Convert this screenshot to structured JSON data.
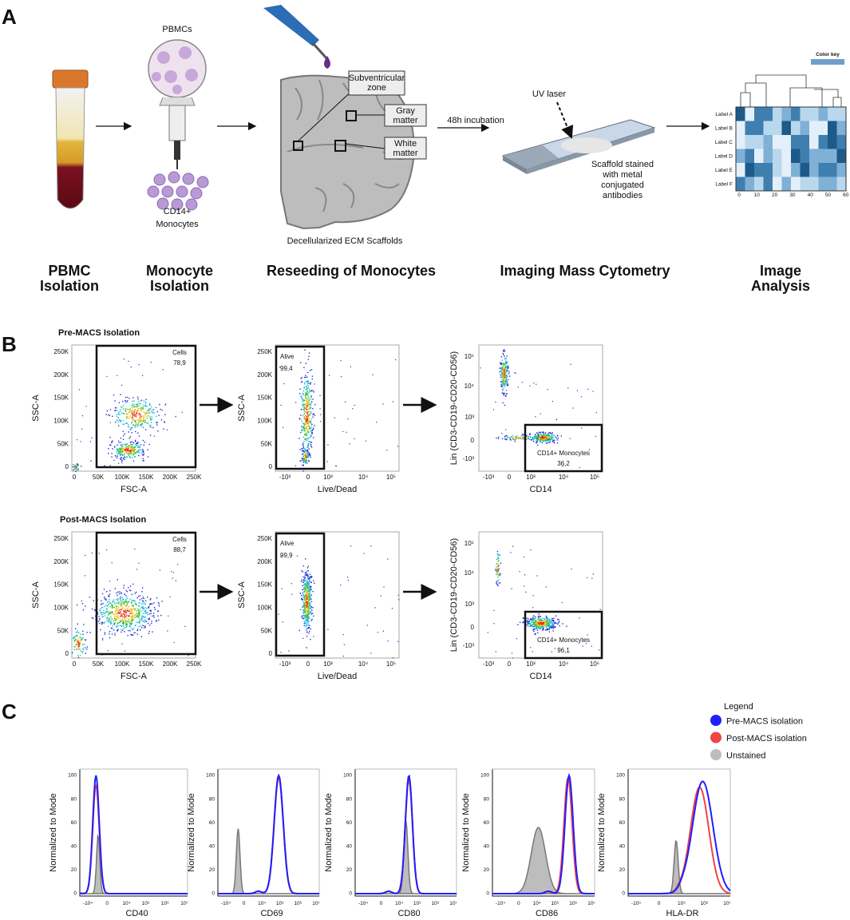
{
  "panel_a": {
    "letter": "A",
    "labels": {
      "pbmcs": "PBMCs",
      "cd14": [
        "CD14+",
        "Monocytes"
      ],
      "svz": [
        "Subventricular",
        "zone"
      ],
      "gray": [
        "Gray",
        "matter"
      ],
      "white": [
        "White",
        "matter"
      ],
      "scaffolds": "Decellularized ECM Scaffolds",
      "incubation": "48h incubation",
      "uv": "UV laser",
      "stained": [
        "Scaffold stained",
        "with metal",
        "conjugated",
        "antibodies"
      ],
      "color_key": "Color key"
    },
    "heatmap": {
      "rows": [
        "Label A",
        "Label B",
        "Label C",
        "Label D",
        "Label E",
        "Label F"
      ],
      "xticks": [
        "0",
        "10",
        "20",
        "30",
        "40",
        "50",
        "60"
      ]
    },
    "steps": [
      [
        "PBMC",
        "Isolation"
      ],
      [
        "Monocyte",
        "Isolation"
      ],
      [
        "Reseeding of Monocytes"
      ],
      [
        "Imaging Mass Cytometry"
      ],
      [
        "Image",
        "Analysis"
      ]
    ]
  },
  "panel_b": {
    "letter": "B",
    "rows": [
      {
        "title": "Pre-MACS Isolation",
        "gates": [
          {
            "name": "Cells",
            "value": "78,9"
          },
          {
            "name": "Alive",
            "value": "99,4"
          },
          {
            "name": "CD14+ Monocytes",
            "value": "36,2"
          }
        ]
      },
      {
        "title": "Post-MACS Isolation",
        "gates": [
          {
            "name": "Cells",
            "value": "88,7"
          },
          {
            "name": "Alive",
            "value": "99,9"
          },
          {
            "name": "CD14+ Monocytes",
            "value": "96,1"
          }
        ]
      }
    ],
    "linear_ticks": [
      "0",
      "50K",
      "100K",
      "150K",
      "200K",
      "250K"
    ],
    "log_ticks": [
      "-10³",
      "0",
      "10³",
      "10⁴",
      "10⁵"
    ],
    "axis_labels": {
      "fsc": "FSC-A",
      "ssc": "SSC-A",
      "live": "Live/Dead",
      "lin": "Lin (CD3-CD19-CD20-CD56)",
      "cd14": "CD14"
    }
  },
  "panel_c": {
    "letter": "C",
    "legend": {
      "title": "Legend",
      "items": [
        {
          "name": "Pre-MACS isolation",
          "color": "#1f1fff"
        },
        {
          "name": "Post-MACS isolation",
          "color": "#f04545"
        },
        {
          "name": "Unstained",
          "color": "#bdbdbd"
        }
      ]
    },
    "ylabel": "Normalized to Mode",
    "yticks": [
      "0",
      "20",
      "40",
      "60",
      "80",
      "100"
    ],
    "plots": [
      {
        "marker": "CD40",
        "xticks": [
          "-10⁴",
          "0",
          "10⁴",
          "10⁵",
          "10⁶",
          "10⁷"
        ]
      },
      {
        "marker": "CD69",
        "xticks": [
          "-10⁴",
          "0",
          "10⁴",
          "10⁵",
          "10⁶",
          "10⁷"
        ]
      },
      {
        "marker": "CD80",
        "xticks": [
          "-10⁴",
          "0",
          "10⁴",
          "10⁵",
          "10⁶",
          "10⁷"
        ]
      },
      {
        "marker": "CD86",
        "xticks": [
          "-10⁴",
          "0",
          "10⁴",
          "10⁵",
          "10⁶",
          "10⁷"
        ]
      },
      {
        "marker": "HLA-DR",
        "xticks": [
          "-10⁵",
          "0",
          "10⁵",
          "10⁶",
          "10⁷"
        ]
      }
    ]
  }
}
